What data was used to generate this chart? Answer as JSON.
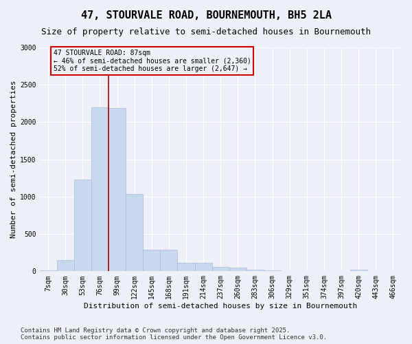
{
  "title": "47, STOURVALE ROAD, BOURNEMOUTH, BH5 2LA",
  "subtitle": "Size of property relative to semi-detached houses in Bournemouth",
  "xlabel": "Distribution of semi-detached houses by size in Bournemouth",
  "ylabel": "Number of semi-detached properties",
  "categories": [
    "7sqm",
    "30sqm",
    "53sqm",
    "76sqm",
    "99sqm",
    "122sqm",
    "145sqm",
    "168sqm",
    "191sqm",
    "214sqm",
    "237sqm",
    "260sqm",
    "283sqm",
    "306sqm",
    "329sqm",
    "351sqm",
    "374sqm",
    "397sqm",
    "420sqm",
    "443sqm",
    "466sqm"
  ],
  "values": [
    10,
    150,
    1230,
    2200,
    2190,
    1040,
    290,
    290,
    110,
    110,
    55,
    45,
    25,
    15,
    5,
    0,
    0,
    0,
    25,
    0,
    0
  ],
  "bar_color": "#c8d8ee",
  "bar_edge_color": "#a8bcd8",
  "vline_color": "#aa0000",
  "annotation_text": "47 STOURVALE ROAD: 87sqm\n← 46% of semi-detached houses are smaller (2,360)\n52% of semi-detached houses are larger (2,647) →",
  "annotation_box_color": "#cc0000",
  "ylim": [
    0,
    3000
  ],
  "yticks": [
    0,
    500,
    1000,
    1500,
    2000,
    2500,
    3000
  ],
  "footer": "Contains HM Land Registry data © Crown copyright and database right 2025.\nContains public sector information licensed under the Open Government Licence v3.0.",
  "bg_color": "#eef0f8",
  "grid_color": "#ffffff",
  "title_fontsize": 11,
  "subtitle_fontsize": 9,
  "axis_label_fontsize": 8,
  "tick_fontsize": 7,
  "footer_fontsize": 6.5,
  "annotation_fontsize": 7
}
